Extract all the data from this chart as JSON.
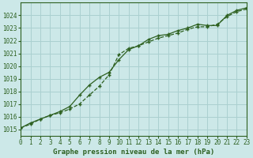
{
  "title": "Graphe pression niveau de la mer (hPa)",
  "background_color": "#cce8e8",
  "grid_color": "#aad0d0",
  "line_color": "#2d6020",
  "xlim": [
    0,
    23
  ],
  "ylim": [
    1014.5,
    1025.0
  ],
  "yticks": [
    1015,
    1016,
    1017,
    1018,
    1019,
    1020,
    1021,
    1022,
    1023,
    1024
  ],
  "xticks": [
    0,
    1,
    2,
    3,
    4,
    5,
    6,
    7,
    8,
    9,
    10,
    11,
    12,
    13,
    14,
    15,
    16,
    17,
    18,
    19,
    20,
    21,
    22,
    23
  ],
  "series1_x": [
    0,
    1,
    2,
    3,
    4,
    5,
    6,
    7,
    8,
    9,
    10,
    11,
    12,
    13,
    14,
    15,
    16,
    17,
    18,
    19,
    20,
    21,
    22,
    23
  ],
  "series1_y": [
    1015.1,
    1015.4,
    1015.8,
    1016.1,
    1016.3,
    1016.6,
    1017.0,
    1017.7,
    1018.4,
    1019.3,
    1020.9,
    1021.4,
    1021.6,
    1021.9,
    1022.2,
    1022.4,
    1022.6,
    1022.9,
    1023.1,
    1023.1,
    1023.3,
    1023.9,
    1024.3,
    1024.5
  ],
  "series2_x": [
    0,
    1,
    2,
    3,
    4,
    5,
    6,
    7,
    8,
    9,
    10,
    11,
    12,
    13,
    14,
    15,
    16,
    17,
    18,
    19,
    20,
    21,
    22,
    23
  ],
  "series2_y": [
    1015.1,
    1015.5,
    1015.8,
    1016.1,
    1016.4,
    1016.8,
    1017.7,
    1018.5,
    1019.1,
    1019.5,
    1020.5,
    1021.3,
    1021.6,
    1022.1,
    1022.4,
    1022.5,
    1022.8,
    1023.0,
    1023.3,
    1023.2,
    1023.2,
    1024.0,
    1024.4,
    1024.6
  ],
  "xlabel_fontsize": 6.5,
  "tick_fontsize": 5.5
}
